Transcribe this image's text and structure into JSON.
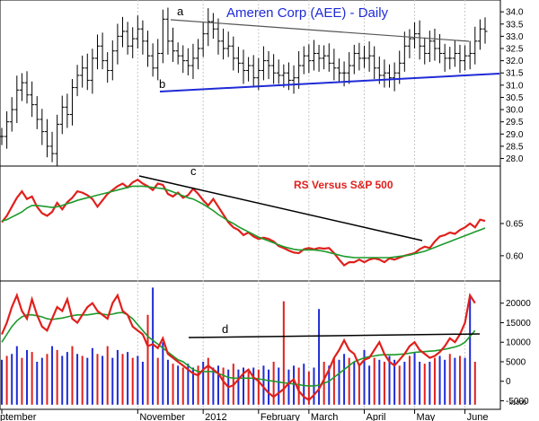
{
  "chart_data": [
    {
      "type": "line",
      "subtype": "ohlc-bars",
      "title": "Ameren Corp (AEE) - Daily",
      "x_labels": [
        "ptember",
        "November",
        "2012",
        "February",
        "March",
        "April",
        "May",
        "June"
      ],
      "y_ticks": [
        "34.0",
        "33.5",
        "33.0",
        "32.5",
        "32.0",
        "31.5",
        "31.0",
        "30.5",
        "30.0",
        "29.5",
        "29.0",
        "28.5",
        "28.0"
      ],
      "ylim": [
        27.8,
        34.3
      ],
      "series": [
        {
          "values": [
            28.9,
            29.5,
            30.0,
            30.8,
            31.1,
            30.6,
            30.2,
            29.6,
            29.1,
            28.5,
            28.2,
            29.4,
            30.1,
            29.8,
            30.9,
            31.4,
            31.7,
            31.2,
            32.1,
            32.6,
            32.0,
            31.6,
            32.4,
            33.0,
            33.2,
            32.6,
            32.9,
            33.3,
            32.8,
            32.2,
            31.7,
            32.3,
            33.7,
            32.8,
            32.4,
            32.2,
            32.0,
            31.8,
            32.1,
            32.5,
            33.1,
            33.6,
            33.3,
            32.8,
            32.5,
            32.6,
            32.1,
            31.9,
            31.6,
            31.8,
            31.3,
            31.6,
            32.0,
            31.8,
            31.5,
            31.4,
            31.5,
            31.2,
            31.3,
            31.8,
            32.2,
            32.0,
            32.3,
            32.1,
            32.2,
            31.9,
            31.7,
            31.5,
            31.5,
            31.8,
            32.3,
            32.1,
            32.1,
            32.2,
            31.7,
            31.4,
            31.5,
            31.3,
            31.5,
            31.9,
            32.6,
            32.9,
            33.1,
            32.6,
            32.3,
            32.8,
            32.5,
            32.3,
            32.1,
            32.1,
            32.3,
            32.0,
            32.2,
            32.3,
            32.8,
            33.3,
            33.2
          ]
        }
      ],
      "annotations": [
        "a",
        "b"
      ]
    },
    {
      "type": "line",
      "title": "RS Versus S&P 500",
      "y_ticks": [
        "0.65",
        "0.60"
      ],
      "ylim": [
        0.565,
        0.735
      ],
      "series": [
        {
          "color": "#e0201c",
          "values": [
            0.652,
            0.662,
            0.676,
            0.69,
            0.7,
            0.688,
            0.692,
            0.676,
            0.666,
            0.662,
            0.668,
            0.682,
            0.672,
            0.683,
            0.69,
            0.7,
            0.698,
            0.694,
            0.688,
            0.676,
            0.686,
            0.696,
            0.702,
            0.708,
            0.712,
            0.706,
            0.714,
            0.718,
            0.712,
            0.708,
            0.702,
            0.712,
            0.71,
            0.696,
            0.692,
            0.698,
            0.69,
            0.694,
            0.704,
            0.696,
            0.686,
            0.678,
            0.688,
            0.676,
            0.664,
            0.652,
            0.644,
            0.64,
            0.632,
            0.636,
            0.63,
            0.626,
            0.628,
            0.626,
            0.622,
            0.615,
            0.612,
            0.608,
            0.605,
            0.604,
            0.61,
            0.612,
            0.61,
            0.612,
            0.611,
            0.612,
            0.604,
            0.594,
            0.585,
            0.59,
            0.59,
            0.594,
            0.59,
            0.594,
            0.596,
            0.594,
            0.59,
            0.596,
            0.594,
            0.597,
            0.6,
            0.602,
            0.604,
            0.61,
            0.614,
            0.612,
            0.622,
            0.63,
            0.632,
            0.636,
            0.634,
            0.64,
            0.644,
            0.65,
            0.644,
            0.656,
            0.654
          ]
        },
        {
          "color": "#1d9a2a",
          "values": [
            0.654,
            0.656,
            0.66,
            0.664,
            0.668,
            0.674,
            0.678,
            0.678,
            0.677,
            0.676,
            0.675,
            0.676,
            0.678,
            0.681,
            0.683,
            0.686,
            0.688,
            0.69,
            0.692,
            0.694,
            0.696,
            0.698,
            0.7,
            0.702,
            0.704,
            0.706,
            0.708,
            0.708,
            0.708,
            0.707,
            0.706,
            0.705,
            0.704,
            0.702,
            0.699,
            0.696,
            0.693,
            0.69,
            0.688,
            0.684,
            0.68,
            0.675,
            0.67,
            0.664,
            0.659,
            0.654,
            0.65,
            0.645,
            0.641,
            0.637,
            0.633,
            0.629,
            0.626,
            0.623,
            0.62,
            0.617,
            0.614,
            0.612,
            0.61,
            0.609,
            0.609,
            0.609,
            0.609,
            0.608,
            0.607,
            0.605,
            0.603,
            0.601,
            0.599,
            0.598,
            0.597,
            0.597,
            0.597,
            0.597,
            0.597,
            0.597,
            0.597,
            0.597,
            0.598,
            0.599,
            0.6,
            0.601,
            0.603,
            0.605,
            0.607,
            0.61,
            0.613,
            0.616,
            0.619,
            0.622,
            0.625,
            0.628,
            0.631,
            0.634,
            0.637,
            0.64,
            0.643
          ]
        }
      ],
      "annotations": [
        "c"
      ]
    },
    {
      "type": "bar",
      "y_ticks": [
        "20000",
        "15000",
        "10000",
        "5000",
        "0",
        "-5000"
      ],
      "ylim": [
        -6500,
        25000
      ],
      "unit_label": "x1000",
      "series": [
        {
          "color": "#e0201c",
          "values": [
            12000,
            15000,
            19000,
            22000,
            18000,
            16000,
            21000,
            17000,
            14000,
            13000,
            16000,
            19000,
            18000,
            21000,
            16000,
            15000,
            17000,
            19000,
            20000,
            18000,
            17000,
            16000,
            20000,
            22000,
            18000,
            17000,
            14000,
            13000,
            12000,
            9000,
            9500,
            8500,
            11000,
            7000,
            6000,
            5000,
            4000,
            3000,
            2000,
            1500,
            3000,
            4000,
            3000,
            2000,
            0,
            -1500,
            -1000,
            500,
            2000,
            3000,
            1000,
            0,
            -1500,
            -3000,
            -4000,
            -3000,
            -2000,
            -500,
            500,
            -2500,
            -4000,
            -4800,
            -3500,
            -2000,
            500,
            3000,
            6000,
            8000,
            10500,
            8000,
            7000,
            4000,
            5500,
            6000,
            8000,
            10000,
            7000,
            5000,
            4000,
            5500,
            7000,
            9000,
            10000,
            8000,
            7000,
            6000,
            6500,
            7500,
            9000,
            11000,
            10000,
            12000,
            15000,
            22000,
            20000
          ]
        },
        {
          "color": "#1d9a2a",
          "values": [
            10000,
            12000,
            14000,
            15500,
            16500,
            17000,
            17000,
            16800,
            16500,
            16000,
            15800,
            16000,
            16200,
            16500,
            16800,
            17000,
            17000,
            17000,
            17200,
            17400,
            17200,
            17000,
            17200,
            17500,
            17600,
            17000,
            16000,
            14500,
            13000,
            11500,
            10500,
            9500,
            8500,
            7500,
            6500,
            5500,
            5000,
            4000,
            3000,
            2500,
            2500,
            2500,
            2500,
            2000,
            1500,
            1000,
            800,
            800,
            800,
            800,
            800,
            600,
            400,
            200,
            0,
            -200,
            -400,
            -500,
            -700,
            -900,
            -1100,
            -1200,
            -1200,
            -1000,
            -500,
            0,
            1000,
            2000,
            3000,
            4000,
            5000,
            5500,
            6000,
            6300,
            6500,
            6700,
            6800,
            6800,
            6800,
            6900,
            7000,
            7200,
            7400,
            7500,
            7600,
            7700,
            7800,
            8000,
            8200,
            8500,
            8800,
            9200,
            10000,
            11500,
            13000
          ]
        },
        {
          "color": "multicolor",
          "values": [
            5500,
            6500,
            7000,
            9000,
            6000,
            8000,
            7500,
            5000,
            6000,
            7000,
            9000,
            8000,
            6500,
            7500,
            9000,
            7000,
            6500,
            6000,
            8500,
            7000,
            6500,
            9000,
            6000,
            8000,
            7000,
            7500,
            6000,
            6500,
            5000,
            17000,
            24000,
            6000,
            10000,
            5500,
            4500,
            4000,
            3500,
            4500,
            3500,
            4000,
            5000,
            6000,
            3500,
            4000,
            3500,
            3000,
            4500,
            3000,
            3500,
            2500,
            3500,
            3000,
            4000,
            3000,
            5000,
            3500,
            20500,
            3000,
            4000,
            3500,
            4500,
            2500,
            3500,
            18500,
            5000,
            4000,
            6000,
            5500,
            7000,
            6000,
            5000,
            4500,
            8000,
            4000,
            6000,
            5500,
            5000,
            6500,
            5500,
            4000,
            5000,
            6500,
            7500,
            5000,
            4500,
            5000,
            6000,
            6500,
            5500,
            7000,
            6000,
            6500,
            6000,
            22000,
            5000
          ]
        }
      ],
      "annotations": [
        "d"
      ]
    }
  ]
}
